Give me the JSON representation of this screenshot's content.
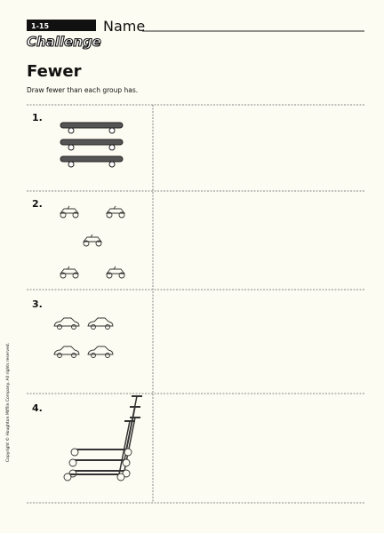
{
  "header": {
    "lesson": "1-15",
    "section": "Challenge",
    "name_label": "Name"
  },
  "title": "Fewer",
  "instruction": "Draw fewer than each group has.",
  "problems": [
    {
      "number": "1."
    },
    {
      "number": "2."
    },
    {
      "number": "3."
    },
    {
      "number": "4."
    }
  ],
  "copyright": "Copyright © Houghton Mifflin Company. All rights reserved."
}
